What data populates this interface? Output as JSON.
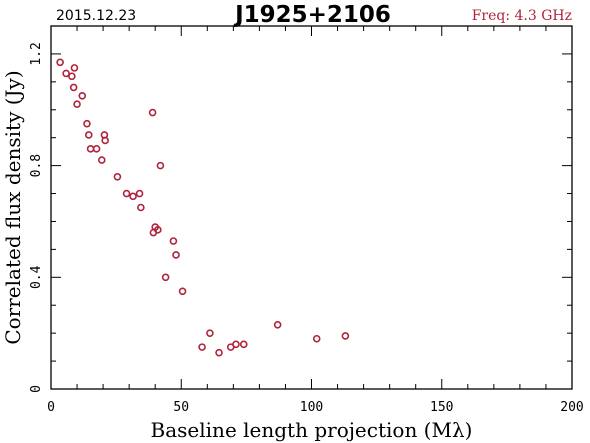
{
  "header": {
    "date": "2015.12.23",
    "source": "J1925+2106",
    "frequency": "Freq: 4.3 GHz"
  },
  "colors": {
    "marker": "#b0233c",
    "frequency_text": "#b0233c"
  },
  "chart_data": {
    "type": "scatter",
    "title": "J1925+2106",
    "xlabel": "Baseline length projection (Mλ)",
    "ylabel": "Correlated flux density (Jy)",
    "xlim": [
      0,
      200
    ],
    "ylim": [
      0,
      1.3
    ],
    "xticks": [
      0,
      50,
      100,
      150,
      200
    ],
    "yticks": [
      0,
      0.4,
      0.8,
      1.2
    ],
    "xticklabels": [
      "0",
      "50",
      "100",
      "150",
      "200"
    ],
    "yticklabels": [
      "0",
      "0.4",
      "0.8",
      "1.2"
    ],
    "grid": false,
    "marker": "open circle",
    "series": [
      {
        "x": [
          3.5,
          5.8,
          8.0,
          9.0,
          8.7,
          10.0,
          12.0,
          13.8,
          14.5,
          15.2,
          17.5,
          19.5,
          20.5,
          20.8,
          25.5,
          29.0,
          31.5,
          34.0,
          34.5,
          39.0,
          39.3,
          40.0,
          41.0,
          42.0,
          44.0,
          47.0,
          48.0,
          50.5,
          58.0,
          61.0,
          64.5,
          69.0,
          71.0,
          74.0,
          87.0,
          102.0,
          113.0
        ],
        "y": [
          1.17,
          1.13,
          1.12,
          1.15,
          1.08,
          1.02,
          1.05,
          0.95,
          0.91,
          0.86,
          0.86,
          0.82,
          0.91,
          0.89,
          0.76,
          0.7,
          0.69,
          0.7,
          0.65,
          0.99,
          0.56,
          0.58,
          0.57,
          0.8,
          0.4,
          0.53,
          0.48,
          0.35,
          0.15,
          0.2,
          0.13,
          0.15,
          0.16,
          0.16,
          0.23,
          0.18,
          0.19
        ]
      }
    ]
  }
}
